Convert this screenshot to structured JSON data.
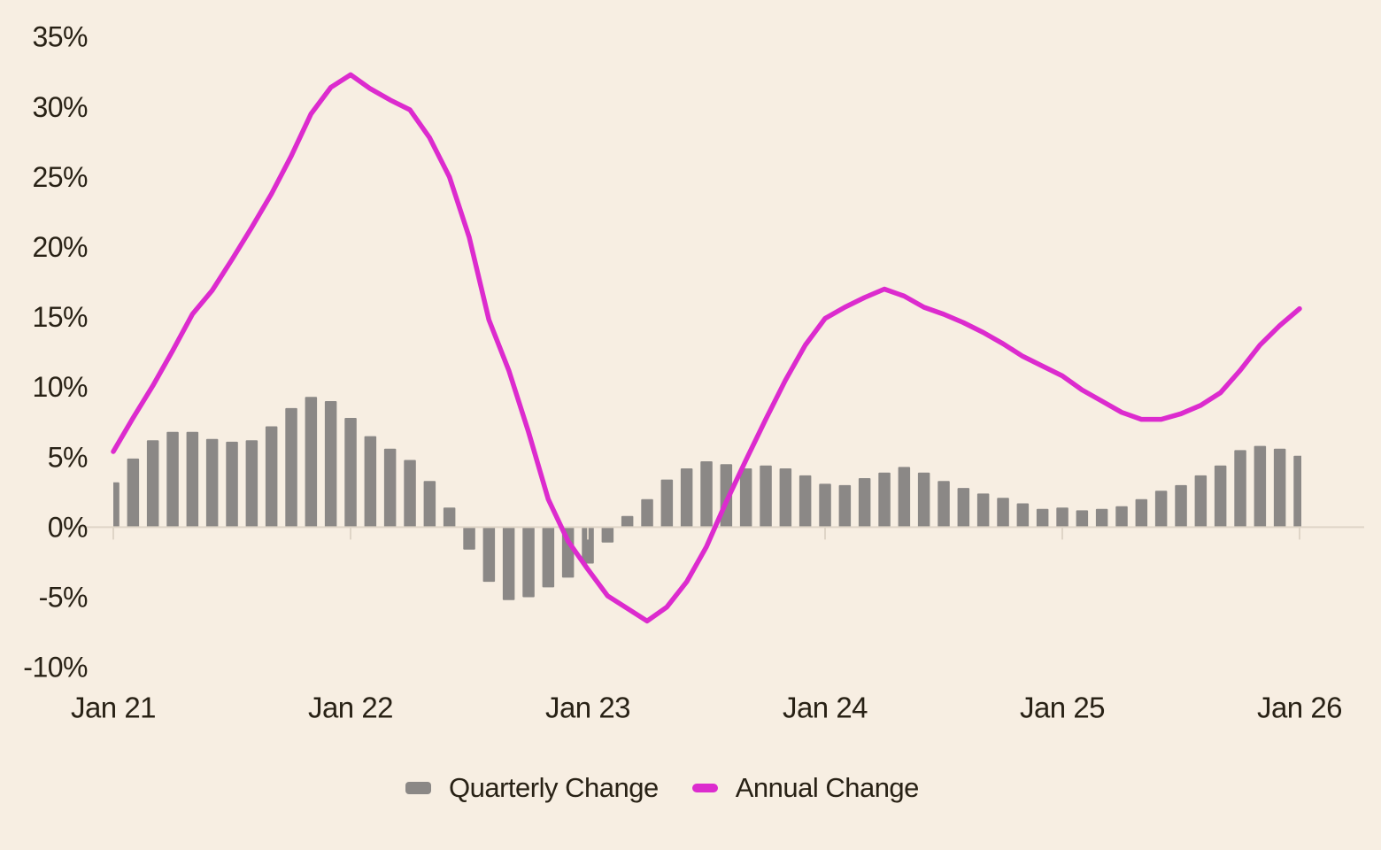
{
  "chart_data": {
    "type": "bar+line",
    "x_start": "Jan 21",
    "x_frequency": "monthly",
    "x_tick_labels": [
      "Jan 21",
      "Jan 22",
      "Jan 23",
      "Jan 24",
      "Jan 25",
      "Jan 26"
    ],
    "y_tick_labels": [
      "35%",
      "30%",
      "25%",
      "20%",
      "15%",
      "10%",
      "5%",
      "0%",
      "-5%",
      "-10%"
    ],
    "y_tick_values": [
      35,
      30,
      25,
      20,
      15,
      10,
      5,
      0,
      -5,
      -10
    ],
    "ylim": [
      -12,
      37
    ],
    "grid": "off",
    "legend_position": "bottom",
    "series": [
      {
        "name": "Quarterly Change",
        "type": "bar",
        "color": "#8b8886",
        "values": [
          3.2,
          4.9,
          6.2,
          6.8,
          6.8,
          6.3,
          6.1,
          6.2,
          7.2,
          8.5,
          9.3,
          9.0,
          7.8,
          6.5,
          5.6,
          4.8,
          3.3,
          1.4,
          -1.6,
          -3.9,
          -5.2,
          -5.0,
          -4.3,
          -3.6,
          -2.6,
          -1.1,
          0.8,
          2.0,
          3.4,
          4.2,
          4.7,
          4.5,
          4.2,
          4.4,
          4.2,
          3.7,
          3.1,
          3.0,
          3.5,
          3.9,
          4.3,
          3.9,
          3.3,
          2.8,
          2.4,
          2.1,
          1.7,
          1.3,
          1.4,
          1.2,
          1.3,
          1.5,
          2.0,
          2.6,
          3.0,
          3.7,
          4.4,
          5.5,
          5.8,
          5.6,
          5.1
        ]
      },
      {
        "name": "Annual Change",
        "type": "line",
        "color": "#dc2bce",
        "values": [
          5.4,
          7.8,
          10.1,
          12.6,
          15.2,
          16.9,
          19.1,
          21.4,
          23.8,
          26.5,
          29.5,
          31.4,
          32.3,
          31.3,
          30.5,
          29.8,
          27.8,
          25.0,
          20.7,
          14.8,
          11.2,
          6.8,
          2.0,
          -1.0,
          -3.0,
          -4.9,
          -5.8,
          -6.7,
          -5.7,
          -3.9,
          -1.4,
          1.8,
          4.8,
          7.7,
          10.5,
          13.0,
          14.9,
          15.7,
          16.4,
          17.0,
          16.5,
          15.7,
          15.2,
          14.6,
          13.9,
          13.1,
          12.2,
          11.5,
          10.8,
          9.8,
          9.0,
          8.2,
          7.7,
          7.7,
          8.1,
          8.7,
          9.6,
          11.2,
          13.0,
          14.4,
          15.6
        ]
      }
    ]
  },
  "legend": {
    "items": [
      {
        "label": "Quarterly Change",
        "color": "#8b8886"
      },
      {
        "label": "Annual Change",
        "color": "#dc2bce"
      }
    ]
  },
  "colors": {
    "background": "#f7eee2",
    "bar": "#8b8886",
    "line": "#dc2bce",
    "text": "#282115",
    "axis": "#dfd5c7"
  }
}
